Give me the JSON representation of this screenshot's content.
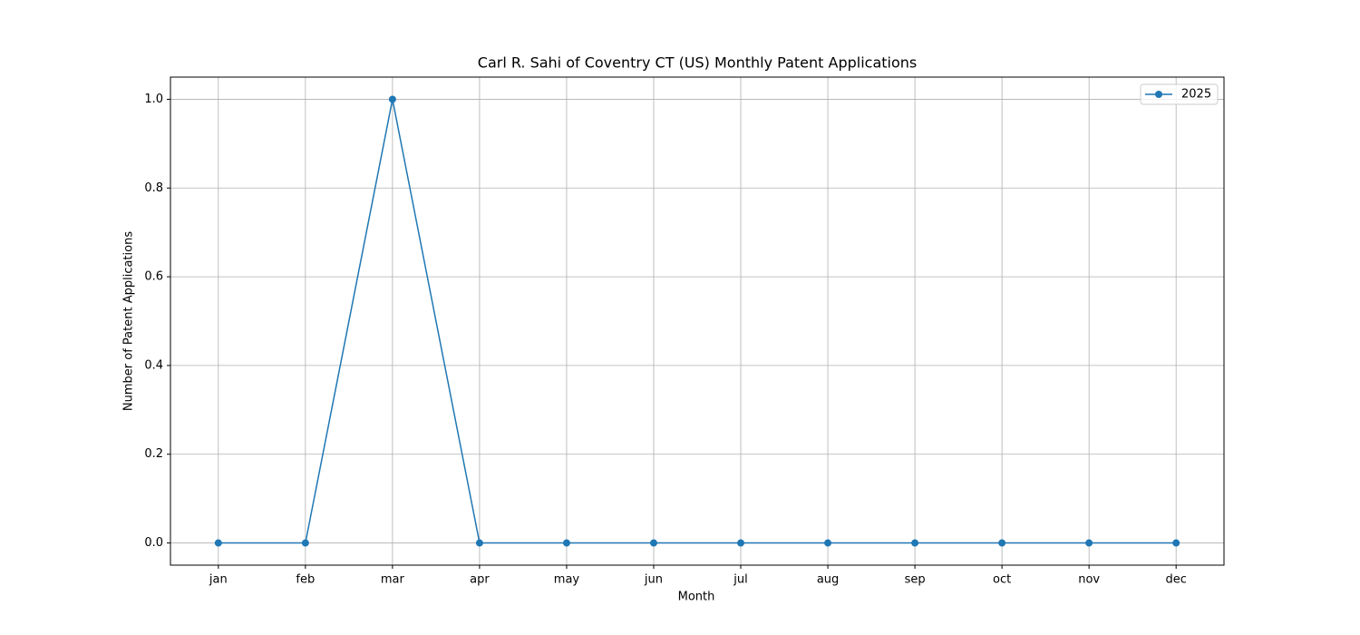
{
  "chart_data": {
    "type": "line",
    "title": "Carl R. Sahi of Coventry CT (US) Monthly Patent Applications",
    "x_label": "Month",
    "y_label": "Number of Patent Applications",
    "categories": [
      "jan",
      "feb",
      "mar",
      "apr",
      "may",
      "jun",
      "jul",
      "aug",
      "sep",
      "oct",
      "nov",
      "dec"
    ],
    "series": [
      {
        "name": "2025",
        "color": "#1f77b4",
        "values": [
          0,
          0,
          1,
          0,
          0,
          0,
          0,
          0,
          0,
          0,
          0,
          0
        ]
      }
    ],
    "ylim": [
      -0.05,
      1.05
    ],
    "yticks": [
      {
        "value": 0,
        "label": "0.0"
      },
      0.2,
      0.4,
      0.6,
      0.8,
      {
        "value": 1,
        "label": "1.0"
      }
    ],
    "grid": true,
    "legend": "upper right"
  }
}
